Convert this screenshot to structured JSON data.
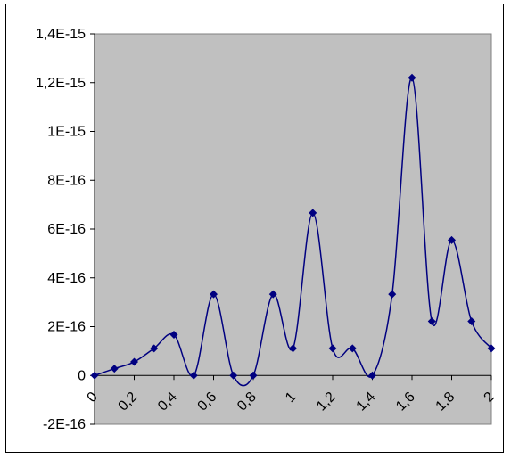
{
  "chart_data": {
    "type": "line",
    "title": "",
    "xlabel": "",
    "ylabel": "",
    "xlim": [
      0,
      2
    ],
    "ylim": [
      -2e-16,
      1.4e-15
    ],
    "x_ticks": [
      {
        "value": 0,
        "label": "0"
      },
      {
        "value": 0.2,
        "label": "0,2"
      },
      {
        "value": 0.4,
        "label": "0,4"
      },
      {
        "value": 0.6,
        "label": "0,6"
      },
      {
        "value": 0.8,
        "label": "0,8"
      },
      {
        "value": 1.0,
        "label": "1"
      },
      {
        "value": 1.2,
        "label": "1,2"
      },
      {
        "value": 1.4,
        "label": "1,4"
      },
      {
        "value": 1.6,
        "label": "1,6"
      },
      {
        "value": 1.8,
        "label": "1,8"
      },
      {
        "value": 2.0,
        "label": "2"
      }
    ],
    "y_ticks": [
      {
        "value": 1.4e-15,
        "label": "1,4E-15"
      },
      {
        "value": 1.2e-15,
        "label": "1,2E-15"
      },
      {
        "value": 1e-15,
        "label": "1E-15"
      },
      {
        "value": 8e-16,
        "label": "8E-16"
      },
      {
        "value": 6e-16,
        "label": "6E-16"
      },
      {
        "value": 4e-16,
        "label": "4E-16"
      },
      {
        "value": 2e-16,
        "label": "2E-16"
      },
      {
        "value": 0,
        "label": "0"
      },
      {
        "value": -2e-16,
        "label": "-2E-16"
      }
    ],
    "grid": false,
    "legend": "none",
    "smoothed": true,
    "series": [
      {
        "x": [
          0,
          0.1,
          0.2,
          0.3,
          0.4,
          0.5,
          0.6,
          0.7,
          0.8,
          0.9,
          1.0,
          1.1,
          1.2,
          1.3,
          1.4,
          1.5,
          1.6,
          1.7,
          1.8,
          1.9,
          2.0
        ],
        "y": [
          0,
          2.78e-17,
          5.55e-17,
          1.11e-16,
          1.67e-16,
          0,
          3.33e-16,
          0,
          0,
          3.33e-16,
          1.11e-16,
          6.66e-16,
          1.11e-16,
          1.11e-16,
          0,
          3.33e-16,
          1.22e-15,
          2.22e-16,
          5.55e-16,
          2.22e-16,
          1.11e-16
        ],
        "color": "#000080",
        "marker": "diamond"
      }
    ],
    "colors": {
      "plot_background": "#c0c0c0",
      "line": "#000080",
      "axis": "#000000"
    }
  }
}
